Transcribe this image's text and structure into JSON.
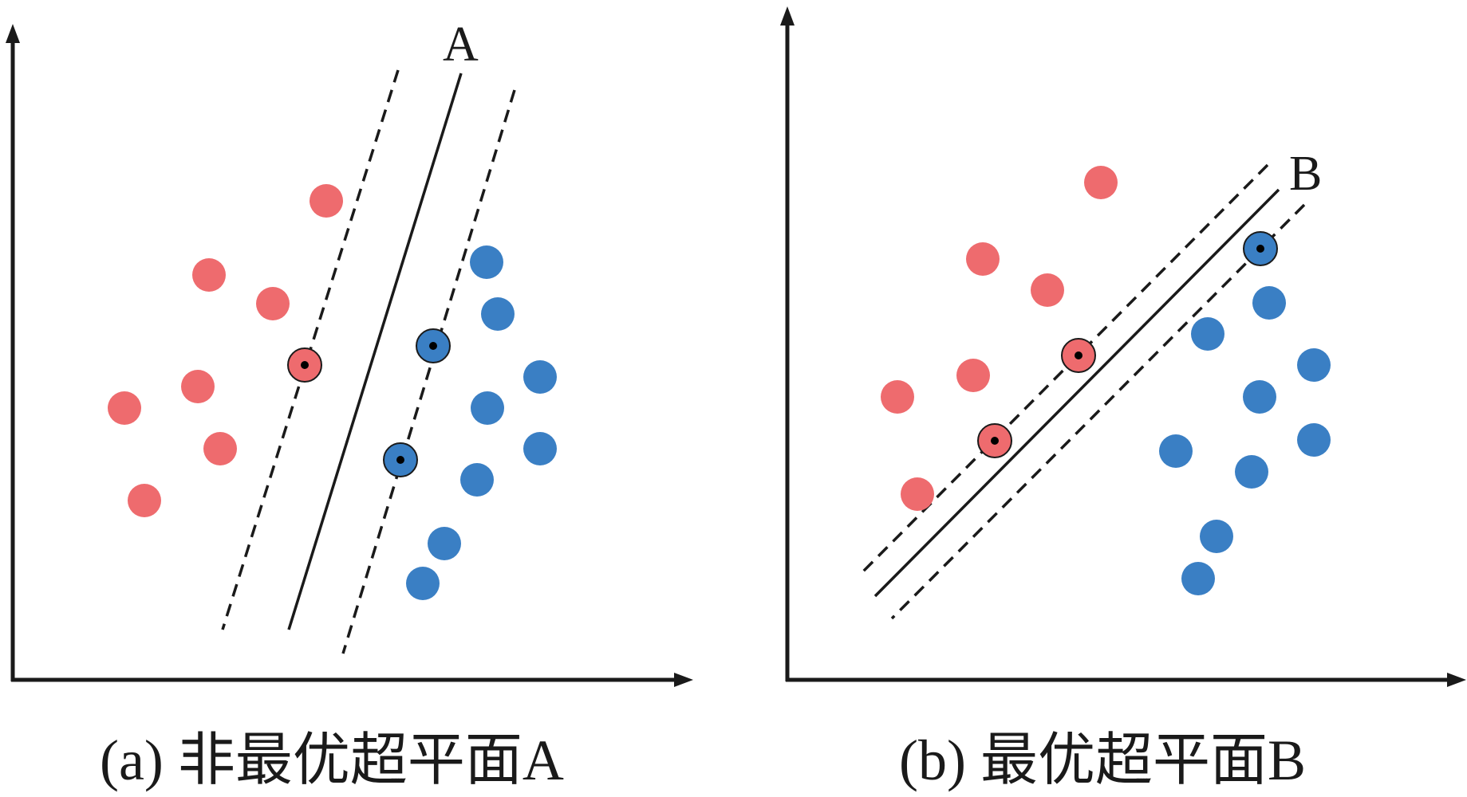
{
  "colors": {
    "red": "#ee6b6e",
    "blue": "#3a7fc4",
    "axis": "#1a1a1a",
    "line": "#1a1a1a"
  },
  "panels": [
    {
      "hyperplane_label": "A",
      "caption": "(a)  非最优超平面A",
      "red_points": [
        [
          409,
          252
        ],
        [
          262,
          345
        ],
        [
          342,
          381
        ],
        [
          382,
          458
        ],
        [
          248,
          485
        ],
        [
          156,
          512
        ],
        [
          276,
          563
        ],
        [
          181,
          628
        ]
      ],
      "blue_points": [
        [
          610,
          329
        ],
        [
          624,
          394
        ],
        [
          543,
          434
        ],
        [
          677,
          473
        ],
        [
          611,
          512
        ],
        [
          677,
          563
        ],
        [
          502,
          577
        ],
        [
          598,
          602
        ],
        [
          557,
          682
        ],
        [
          530,
          732
        ]
      ],
      "support_vectors_red": [
        [
          382,
          458
        ]
      ],
      "support_vectors_blue": [
        [
          543,
          434
        ],
        [
          502,
          577
        ]
      ],
      "hyperplane": [
        [
          578,
          92
        ],
        [
          362,
          790
        ]
      ],
      "margin_lines": [
        [
          [
            499,
            88
          ],
          [
            279,
            790
          ]
        ],
        [
          [
            645,
            113
          ],
          [
            430,
            820
          ]
        ]
      ]
    },
    {
      "hyperplane_label": "B",
      "caption": "(b)  最优超平面B",
      "red_points": [
        [
          460,
          229
        ],
        [
          312,
          325
        ],
        [
          393,
          364
        ],
        [
          432,
          446
        ],
        [
          300,
          471
        ],
        [
          205,
          498
        ],
        [
          327,
          553
        ],
        [
          230,
          620
        ]
      ],
      "blue_points": [
        [
          660,
          312
        ],
        [
          671,
          380
        ],
        [
          594,
          419
        ],
        [
          727,
          458
        ],
        [
          659,
          498
        ],
        [
          727,
          552
        ],
        [
          554,
          566
        ],
        [
          649,
          592
        ],
        [
          605,
          673
        ],
        [
          582,
          726
        ]
      ],
      "support_vectors_red": [
        [
          432,
          446
        ],
        [
          327,
          553
        ]
      ],
      "support_vectors_blue": [
        [
          660,
          312
        ]
      ],
      "hyperplane": [
        [
          683,
          238
        ],
        [
          177,
          748
        ]
      ],
      "margin_lines": [
        [
          [
            669,
            207
          ],
          [
            158,
            721
          ]
        ],
        [
          [
            715,
            257
          ],
          [
            198,
            776
          ]
        ]
      ]
    }
  ]
}
